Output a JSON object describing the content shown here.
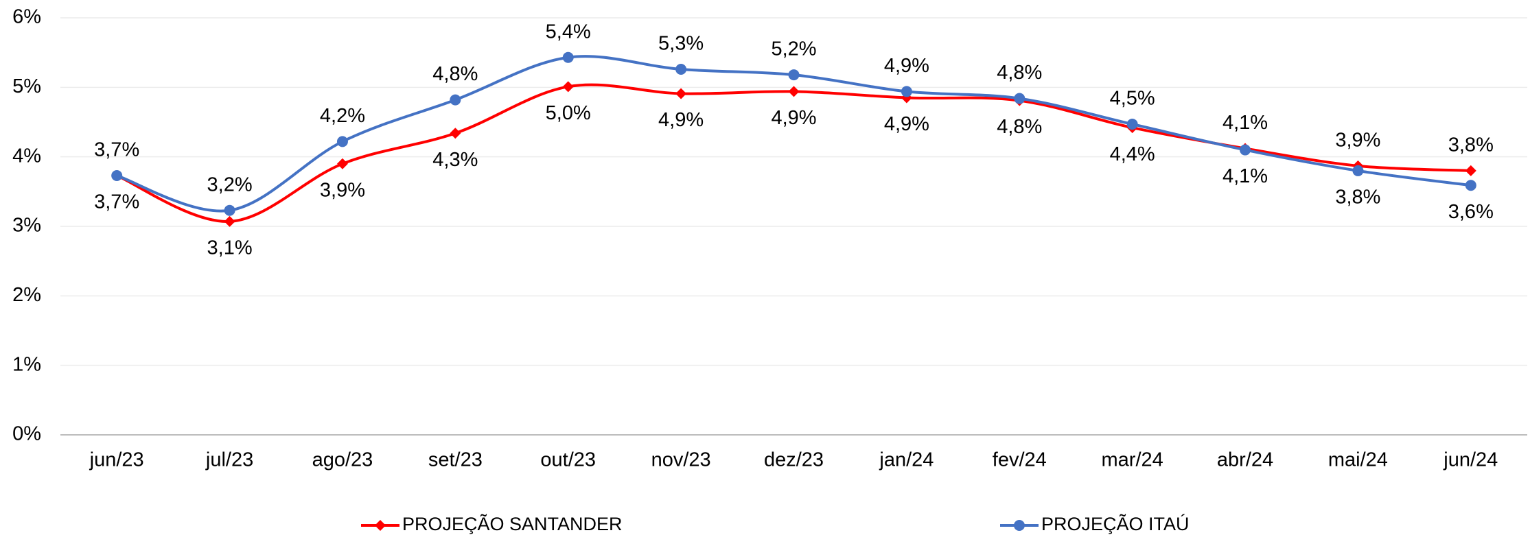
{
  "chart_data": {
    "type": "line",
    "categories": [
      "jun/23",
      "jul/23",
      "ago/23",
      "set/23",
      "out/23",
      "nov/23",
      "dez/23",
      "jan/24",
      "fev/24",
      "mar/24",
      "abr/24",
      "mai/24",
      "jun/24"
    ],
    "series": [
      {
        "name": "PROJEÇÃO SANTANDER",
        "color": "#ff0000",
        "marker": "diamond",
        "values": [
          3.73,
          3.07,
          3.9,
          4.34,
          5.01,
          4.91,
          4.94,
          4.85,
          4.81,
          4.42,
          4.12,
          3.87,
          3.8
        ],
        "value_labels": [
          "3,7%",
          "3,1%",
          "3,9%",
          "4,3%",
          "5,0%",
          "4,9%",
          "4,9%",
          "4,9%",
          "4,8%",
          "4,4%",
          "4,1%",
          "3,9%",
          "3,8%"
        ]
      },
      {
        "name": "PROJEÇÃO ITAÚ",
        "color": "#4472c4",
        "marker": "circle",
        "values": [
          3.73,
          3.23,
          4.22,
          4.82,
          5.43,
          5.26,
          5.18,
          4.94,
          4.84,
          4.47,
          4.1,
          3.8,
          3.59
        ],
        "value_labels": [
          "3,7%",
          "3,2%",
          "4,2%",
          "4,8%",
          "5,4%",
          "5,3%",
          "5,2%",
          "4,9%",
          "4,8%",
          "4,5%",
          "4,1%",
          "3,8%",
          "3,6%"
        ]
      }
    ],
    "ylim": [
      0,
      6
    ],
    "yticks": [
      {
        "value": 0,
        "label": "0%"
      },
      {
        "value": 1,
        "label": "1%"
      },
      {
        "value": 2,
        "label": "2%"
      },
      {
        "value": 3,
        "label": "3%"
      },
      {
        "value": 4,
        "label": "4%"
      },
      {
        "value": 5,
        "label": "5%"
      },
      {
        "value": 6,
        "label": "6%"
      }
    ],
    "grid": true,
    "legend": "bottom"
  }
}
